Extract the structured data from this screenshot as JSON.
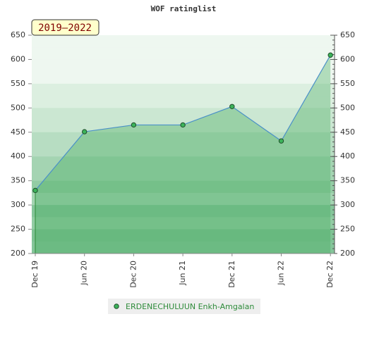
{
  "chart_data": {
    "type": "line",
    "title": "WOF ratinglist",
    "annotation": "2019–2022",
    "categories": [
      "Dec 19",
      "Jun 20",
      "Dec 20",
      "Jun 21",
      "Dec 21",
      "Jun 22",
      "Dec 22"
    ],
    "series": [
      {
        "name": "ERDENECHULUUN Enkh-Amgalan",
        "color": "#4a90c8",
        "values": [
          330,
          451,
          465,
          465,
          503,
          432,
          609
        ]
      }
    ],
    "ylim": [
      200,
      650
    ],
    "yticks": [
      200,
      250,
      300,
      350,
      400,
      450,
      500,
      550,
      600,
      650
    ],
    "y2lim": [
      200,
      650
    ],
    "y2ticks": [
      200,
      250,
      300,
      350,
      400,
      450,
      500,
      550,
      600,
      650
    ]
  }
}
